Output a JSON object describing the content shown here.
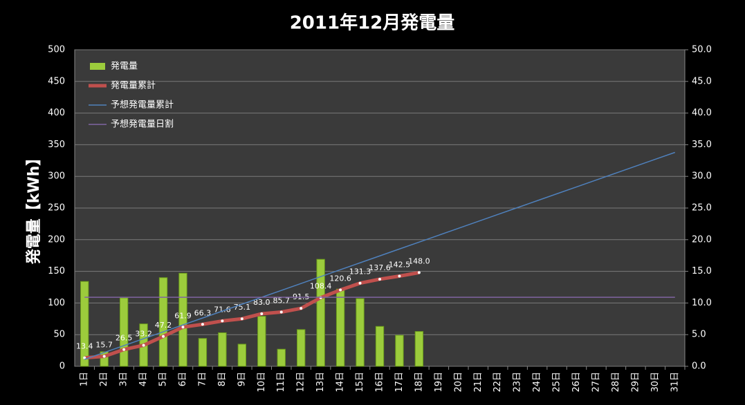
{
  "chart_data": {
    "type": "combo",
    "title": "2011年12月発電量",
    "ylabel": "発電量【kWh】",
    "categories": [
      "1日",
      "2日",
      "3日",
      "4日",
      "5日",
      "6日",
      "7日",
      "8日",
      "9日",
      "10日",
      "11日",
      "12日",
      "13日",
      "14日",
      "15日",
      "16日",
      "17日",
      "18日",
      "19日",
      "20日",
      "21日",
      "22日",
      "23日",
      "24日",
      "25日",
      "26日",
      "27日",
      "28日",
      "29日",
      "30日",
      "31日"
    ],
    "ylim": [
      0,
      500
    ],
    "yticks": [
      0,
      50,
      100,
      150,
      200,
      250,
      300,
      350,
      400,
      450,
      500
    ],
    "y2lim": [
      0,
      50
    ],
    "y2ticks": [
      {
        "value": 0,
        "label": "0.0"
      },
      {
        "value": 5,
        "label": "5.0"
      },
      {
        "value": 10,
        "label": "10.0"
      },
      {
        "value": 15,
        "label": "15.0"
      },
      {
        "value": 20,
        "label": "20.0"
      },
      {
        "value": 25,
        "label": "25.0"
      },
      {
        "value": 30,
        "label": "30.0"
      },
      {
        "value": 35,
        "label": "35.0"
      },
      {
        "value": 40,
        "label": "40.0"
      },
      {
        "value": 45,
        "label": "45.0"
      },
      {
        "value": 50,
        "label": "50.0"
      }
    ],
    "grid": true,
    "legend": "top-left",
    "series": [
      {
        "name": "発電量",
        "kind": "bar",
        "axis": "y2",
        "color": "#9ccc3c",
        "values": [
          13.4,
          2.3,
          10.8,
          6.7,
          14.0,
          14.7,
          4.4,
          5.3,
          3.5,
          7.9,
          2.7,
          5.8,
          16.9,
          12.2,
          10.7,
          6.3,
          4.9,
          5.5,
          null,
          null,
          null,
          null,
          null,
          null,
          null,
          null,
          null,
          null,
          null,
          null,
          null
        ]
      },
      {
        "name": "発電量累計",
        "kind": "line",
        "color": "#c0504d",
        "values": [
          13.4,
          15.7,
          26.5,
          33.2,
          47.2,
          61.9,
          66.3,
          71.6,
          75.1,
          83.0,
          85.7,
          91.5,
          108.4,
          120.6,
          131.3,
          137.6,
          142.5,
          148.0,
          null,
          null,
          null,
          null,
          null,
          null,
          null,
          null,
          null,
          null,
          null,
          null,
          null
        ],
        "value_labels": [
          "13.4",
          "15.7",
          "26.5",
          "33.2",
          "47.2",
          "61.9",
          "66.3",
          "71.6",
          "75.1",
          "83.0",
          "85.7",
          "91.5",
          "108.4",
          "120.6",
          "131.3",
          "137.6",
          "142.5",
          "148.0",
          null,
          null,
          null,
          null,
          null,
          null,
          null,
          null,
          null,
          null,
          null,
          null,
          null
        ]
      },
      {
        "name": "予想発電量累計",
        "kind": "line",
        "color": "#4f81bd",
        "values": [
          10.9,
          21.8,
          32.7,
          43.6,
          54.5,
          65.4,
          76.3,
          87.2,
          98.1,
          109,
          119.9,
          130.8,
          141.7,
          152.6,
          163.5,
          174.4,
          185.3,
          196.2,
          207.1,
          218,
          228.9,
          239.8,
          250.7,
          261.6,
          272.5,
          283.4,
          294.3,
          305.2,
          316.1,
          327,
          337.9
        ]
      },
      {
        "name": "予想発電量日割",
        "kind": "line",
        "axis": "y2",
        "color": "#8064a2",
        "values": [
          10.9,
          10.9,
          10.9,
          10.9,
          10.9,
          10.9,
          10.9,
          10.9,
          10.9,
          10.9,
          10.9,
          10.9,
          10.9,
          10.9,
          10.9,
          10.9,
          10.9,
          10.9,
          10.9,
          10.9,
          10.9,
          10.9,
          10.9,
          10.9,
          10.9,
          10.9,
          10.9,
          10.9,
          10.9,
          10.9,
          10.9
        ]
      }
    ]
  }
}
